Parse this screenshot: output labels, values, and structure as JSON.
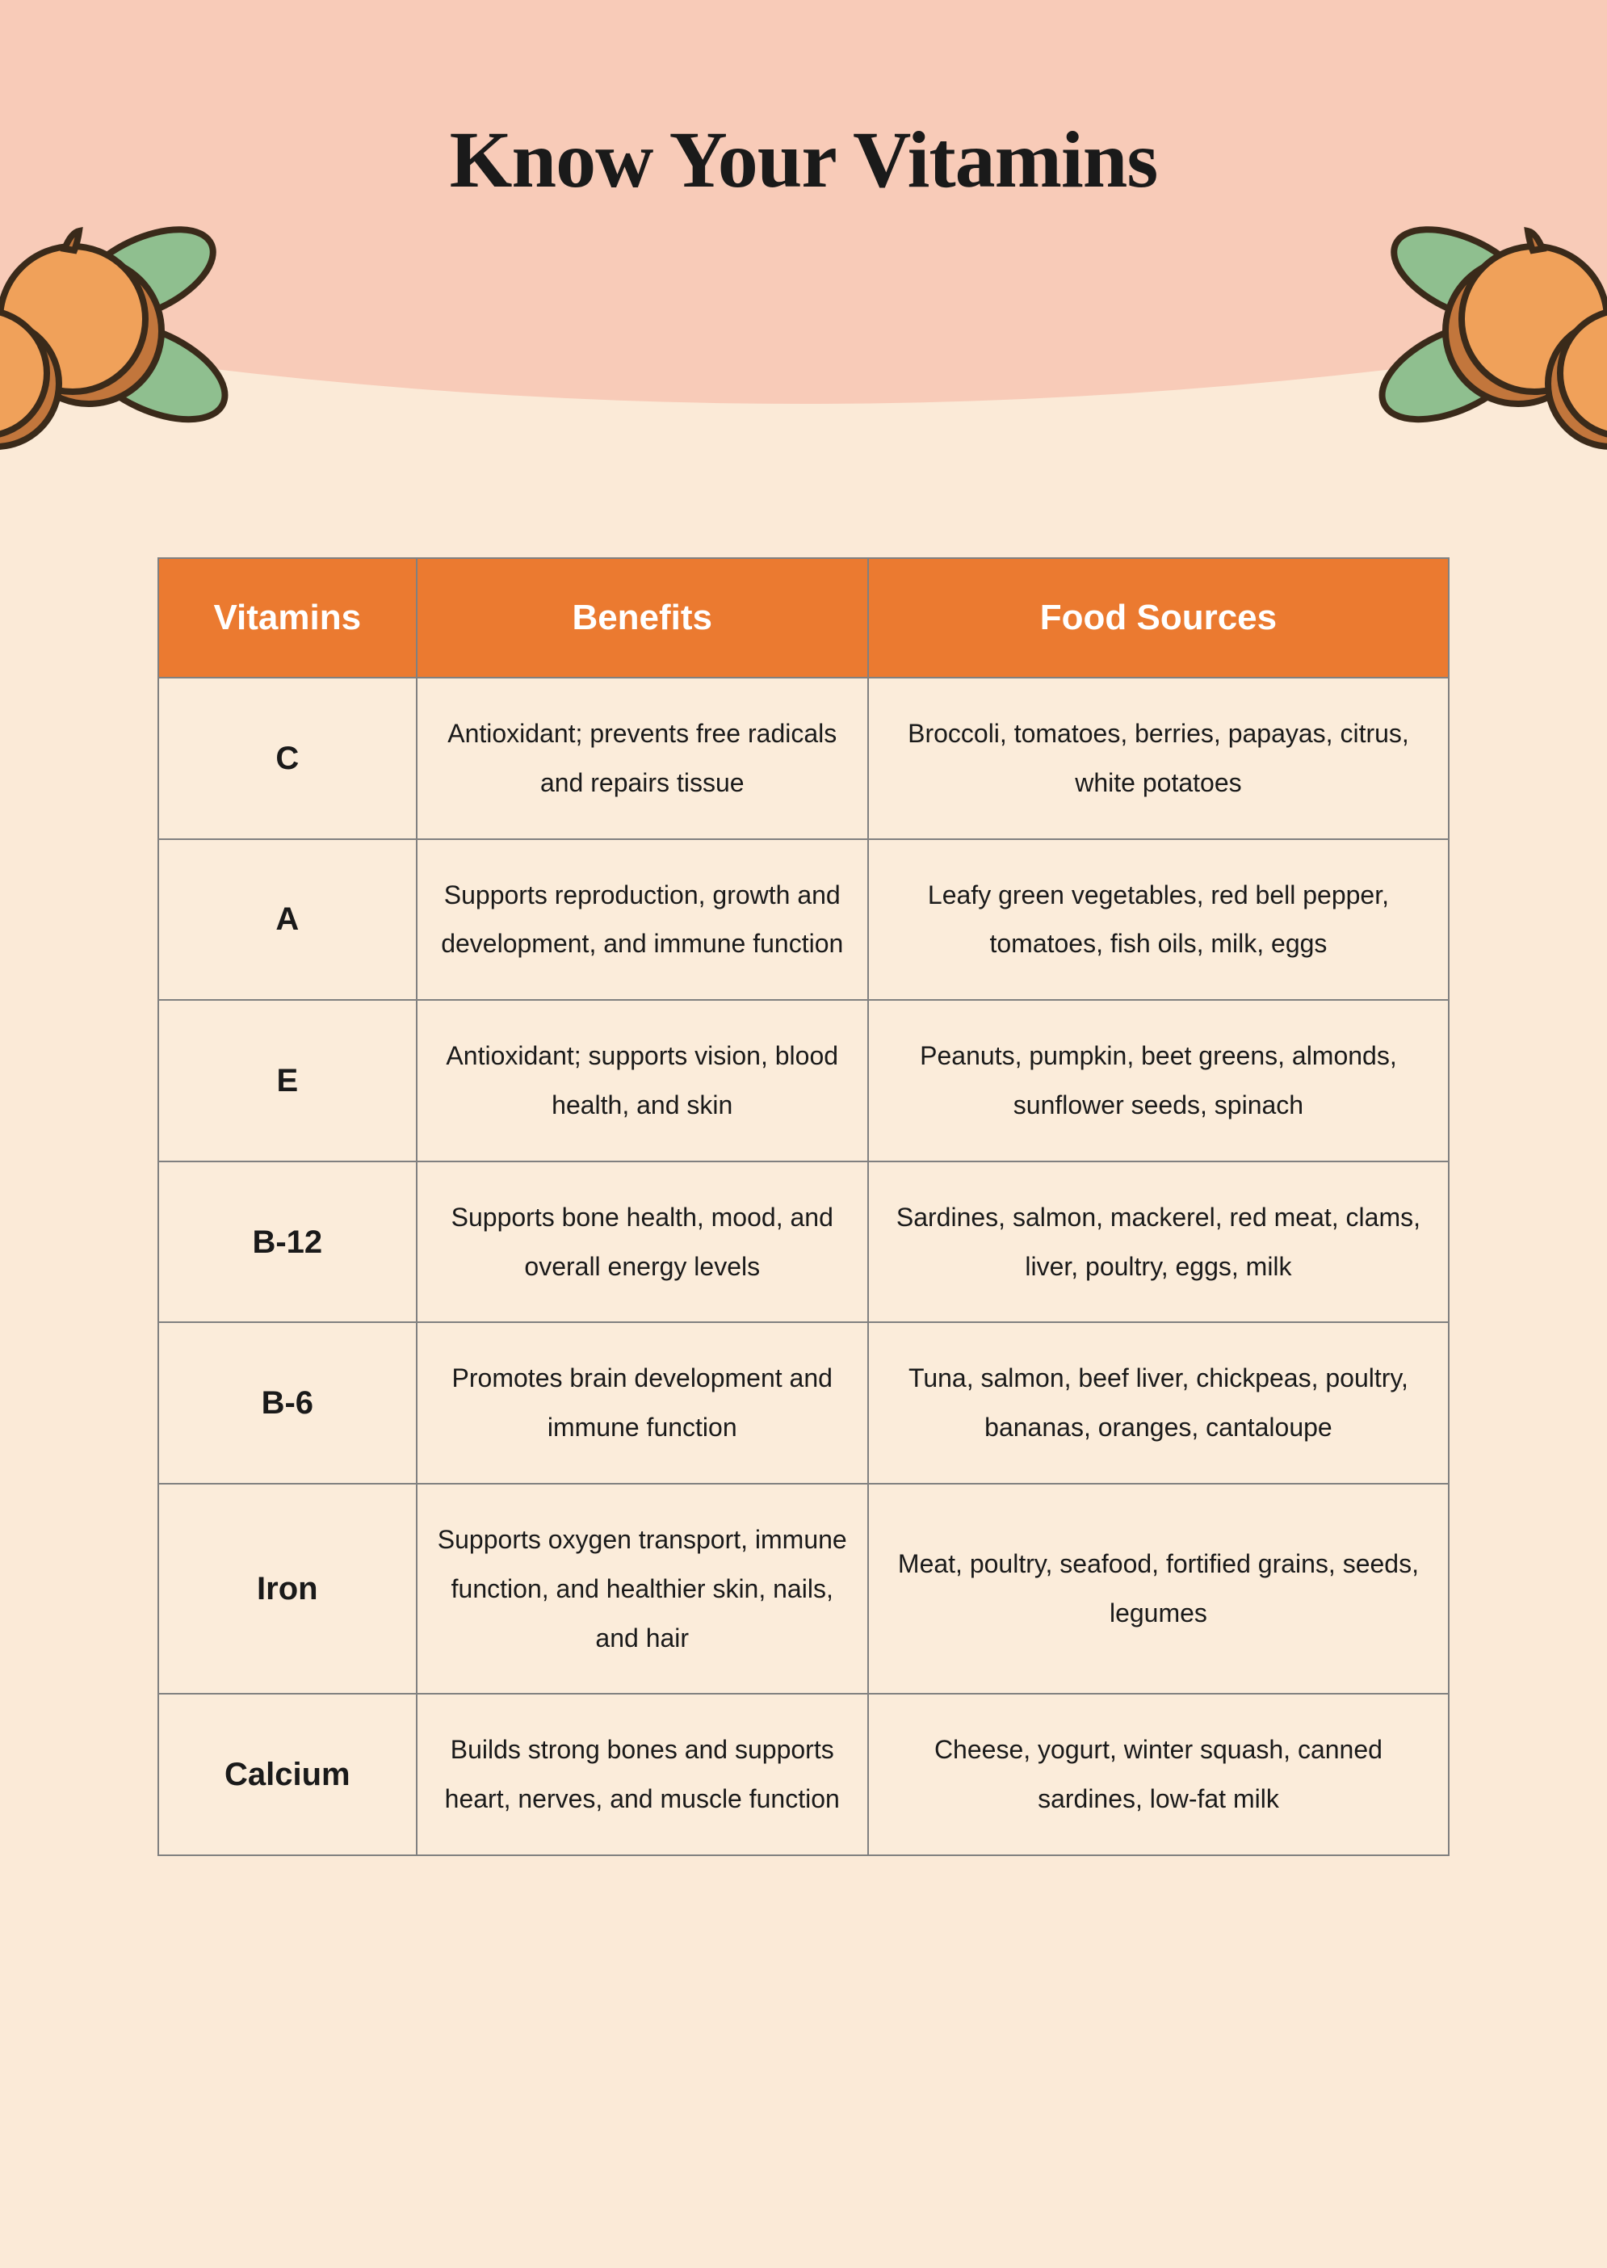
{
  "title": "Know Your Vitamins",
  "colors": {
    "page_bg": "#fbead7",
    "header_bg": "#f8cbb8",
    "title_color": "#1a1a1a",
    "table_header_bg": "#eb7a30",
    "table_header_text": "#ffffff",
    "table_row_bg": "#fbecda",
    "table_border": "#808080",
    "cell_text": "#1a1a1a",
    "fruit_body": "#f0a15a",
    "fruit_shadow": "#c2763c",
    "fruit_outline": "#3a2a1a",
    "leaf_fill": "#8fbf8f",
    "leaf_outline": "#3a2a1a"
  },
  "table": {
    "columns": [
      "Vitamins",
      "Benefits",
      "Food Sources"
    ],
    "rows": [
      {
        "vitamin": "C",
        "benefits": "Antioxidant; prevents free radicals and repairs tissue",
        "sources": "Broccoli, tomatoes, berries, papayas, citrus, white potatoes"
      },
      {
        "vitamin": "A",
        "benefits": "Supports reproduction, growth and development, and immune function",
        "sources": "Leafy green vegetables, red bell pepper, tomatoes, fish oils, milk, eggs"
      },
      {
        "vitamin": "E",
        "benefits": "Antioxidant; supports vision, blood health, and skin",
        "sources": "Peanuts, pumpkin, beet greens, almonds, sunflower seeds, spinach"
      },
      {
        "vitamin": "B-12",
        "benefits": "Supports bone health, mood, and overall energy levels",
        "sources": "Sardines, salmon, mackerel, red meat, clams, liver, poultry, eggs, milk"
      },
      {
        "vitamin": "B-6",
        "benefits": "Promotes brain development and immune function",
        "sources": "Tuna, salmon, beef liver, chickpeas, poultry, bananas, oranges, cantaloupe"
      },
      {
        "vitamin": "Iron",
        "benefits": "Supports oxygen transport, immune function, and healthier skin, nails, and hair",
        "sources": "Meat, poultry, seafood, fortified grains, seeds, legumes"
      },
      {
        "vitamin": "Calcium",
        "benefits": "Builds strong bones and supports heart, nerves, and muscle function",
        "sources": "Cheese, yogurt, winter squash, canned sardines, low-fat milk"
      }
    ]
  }
}
